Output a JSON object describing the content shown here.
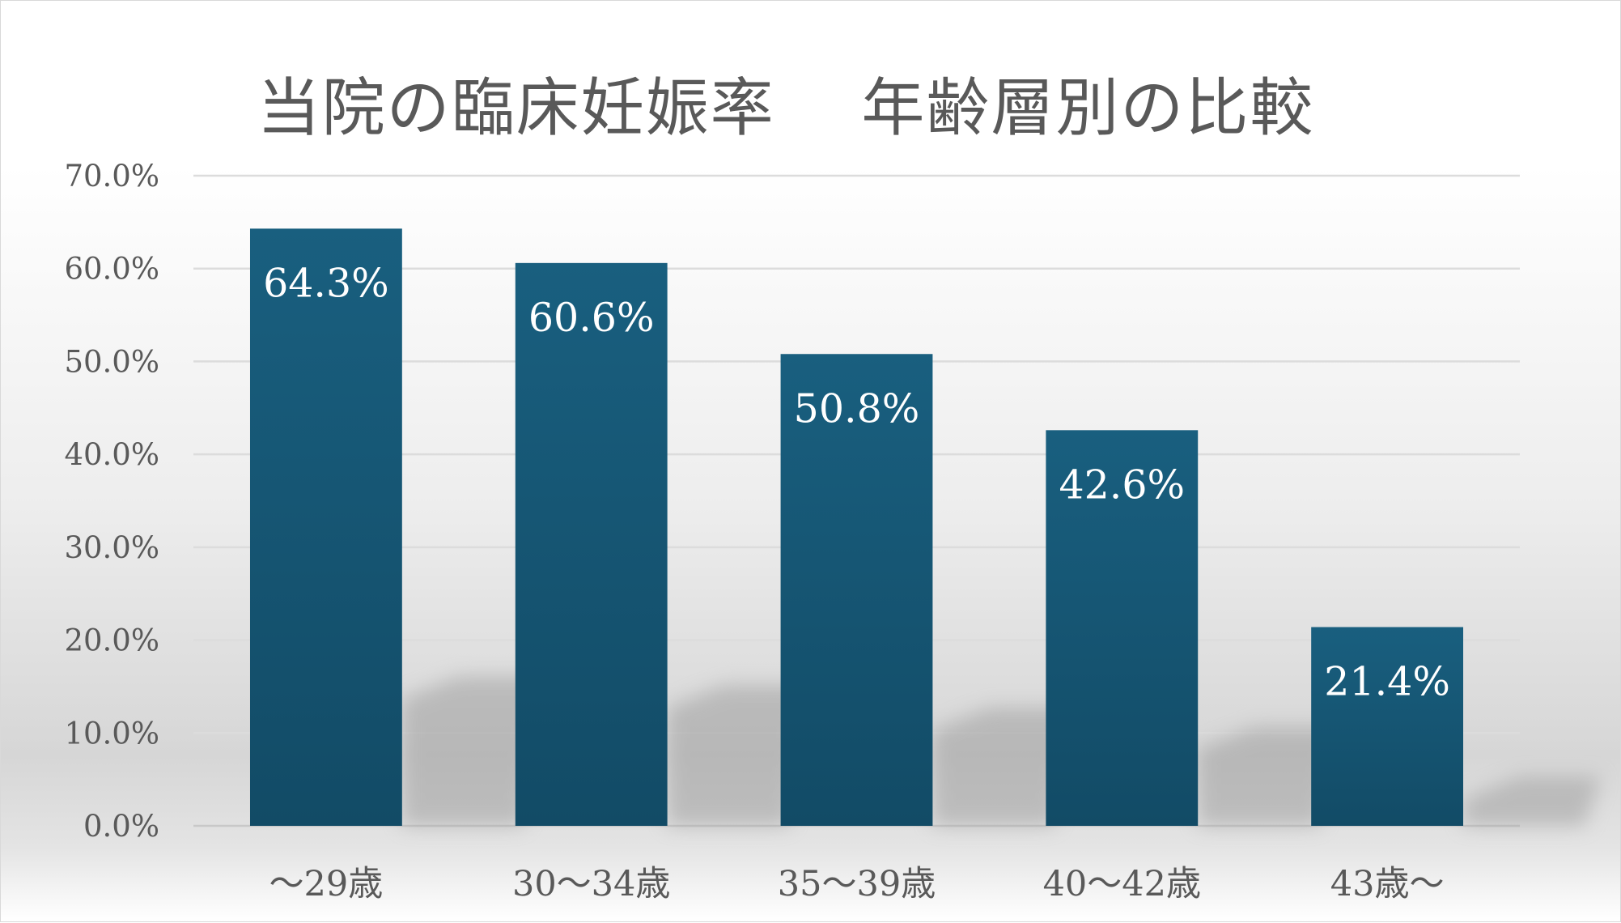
{
  "chart_data": {
    "type": "bar",
    "title": "当院の臨床妊娠率　 年齢層別の比較",
    "xlabel": "",
    "ylabel": "",
    "categories": [
      "～29歳",
      "30～34歳",
      "35～39歳",
      "40～42歳",
      "43歳～"
    ],
    "values": [
      64.3,
      60.6,
      50.8,
      42.6,
      21.4
    ],
    "data_labels": [
      "64.3%",
      "60.6%",
      "50.8%",
      "42.6%",
      "21.4%"
    ],
    "ylim": [
      0,
      70
    ],
    "y_ticks": [
      "0.0%",
      "10.0%",
      "20.0%",
      "30.0%",
      "40.0%",
      "50.0%",
      "60.0%",
      "70.0%"
    ],
    "grid": true,
    "legend": "none",
    "bar_color": "#175b7a"
  }
}
